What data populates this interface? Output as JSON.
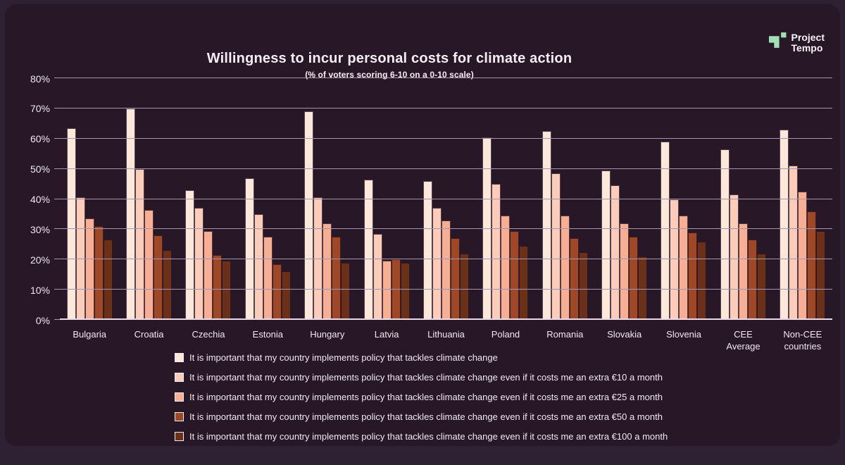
{
  "logo": {
    "line1": "Project",
    "line2": "Tempo",
    "icon_color": "#a3dfb5",
    "icon_name": "project-tempo-logo-icon"
  },
  "colors": {
    "page_background": "#2e2133",
    "card_background": "#281727",
    "gridline": "#a596ae",
    "baseline": "#ead9e6",
    "text": "#f0e9f0",
    "bar_outline": "#1f0e1f"
  },
  "chart_data": {
    "type": "bar",
    "title": "Willingness to incur personal costs for climate action",
    "subtitle": "(% of voters scoring 6-10 on a 0-10 scale)",
    "ylim": [
      0,
      80
    ],
    "yticks": [
      0,
      10,
      20,
      30,
      40,
      50,
      60,
      70,
      80
    ],
    "ytick_suffix": "%",
    "grid": true,
    "legend_position": "bottom",
    "categories": [
      "Bulgaria",
      "Croatia",
      "Czechia",
      "Estonia",
      "Hungary",
      "Latvia",
      "Lithuania",
      "Poland",
      "Romania",
      "Slovakia",
      "Slovenia",
      "CEE Average",
      "Non-CEE countries"
    ],
    "series": [
      {
        "name": "It is important that my country implements policy that tackles climate change",
        "color": "#fce7db",
        "values": [
          63.5,
          70,
          43,
          47,
          69,
          46.5,
          46,
          60.5,
          62.5,
          49.5,
          59,
          56.5,
          63
        ]
      },
      {
        "name": "It is important that my country implements policy that tackles climate change even if it costs me an extra €10 a month",
        "color": "#fbccb9",
        "values": [
          40.5,
          50,
          37,
          35,
          40.5,
          28.5,
          37,
          45,
          48.5,
          44.5,
          40,
          41.5,
          51
        ]
      },
      {
        "name": "It is important that my country implements policy that tackles climate change even if it costs me an extra €25 a month",
        "color": "#f6af94",
        "values": [
          33.5,
          36.5,
          29.5,
          27.5,
          32,
          19.5,
          33,
          34.5,
          34.5,
          32,
          34.5,
          32,
          42.5
        ]
      },
      {
        "name": "It is important that my country implements policy that tackles climate change even if it costs me an extra €50 a month",
        "color": "#9f4827",
        "values": [
          31,
          28,
          21.5,
          18.5,
          27.5,
          20,
          27,
          29.5,
          27,
          27.5,
          29,
          26.5,
          36
        ]
      },
      {
        "name": "It is important that my country implements policy that tackles climate change even if it costs me an extra €100 a month",
        "color": "#6b3019",
        "values": [
          26.5,
          23,
          19.5,
          16,
          19,
          19,
          22,
          24.5,
          22.5,
          21,
          26,
          22,
          29.5
        ]
      }
    ]
  }
}
